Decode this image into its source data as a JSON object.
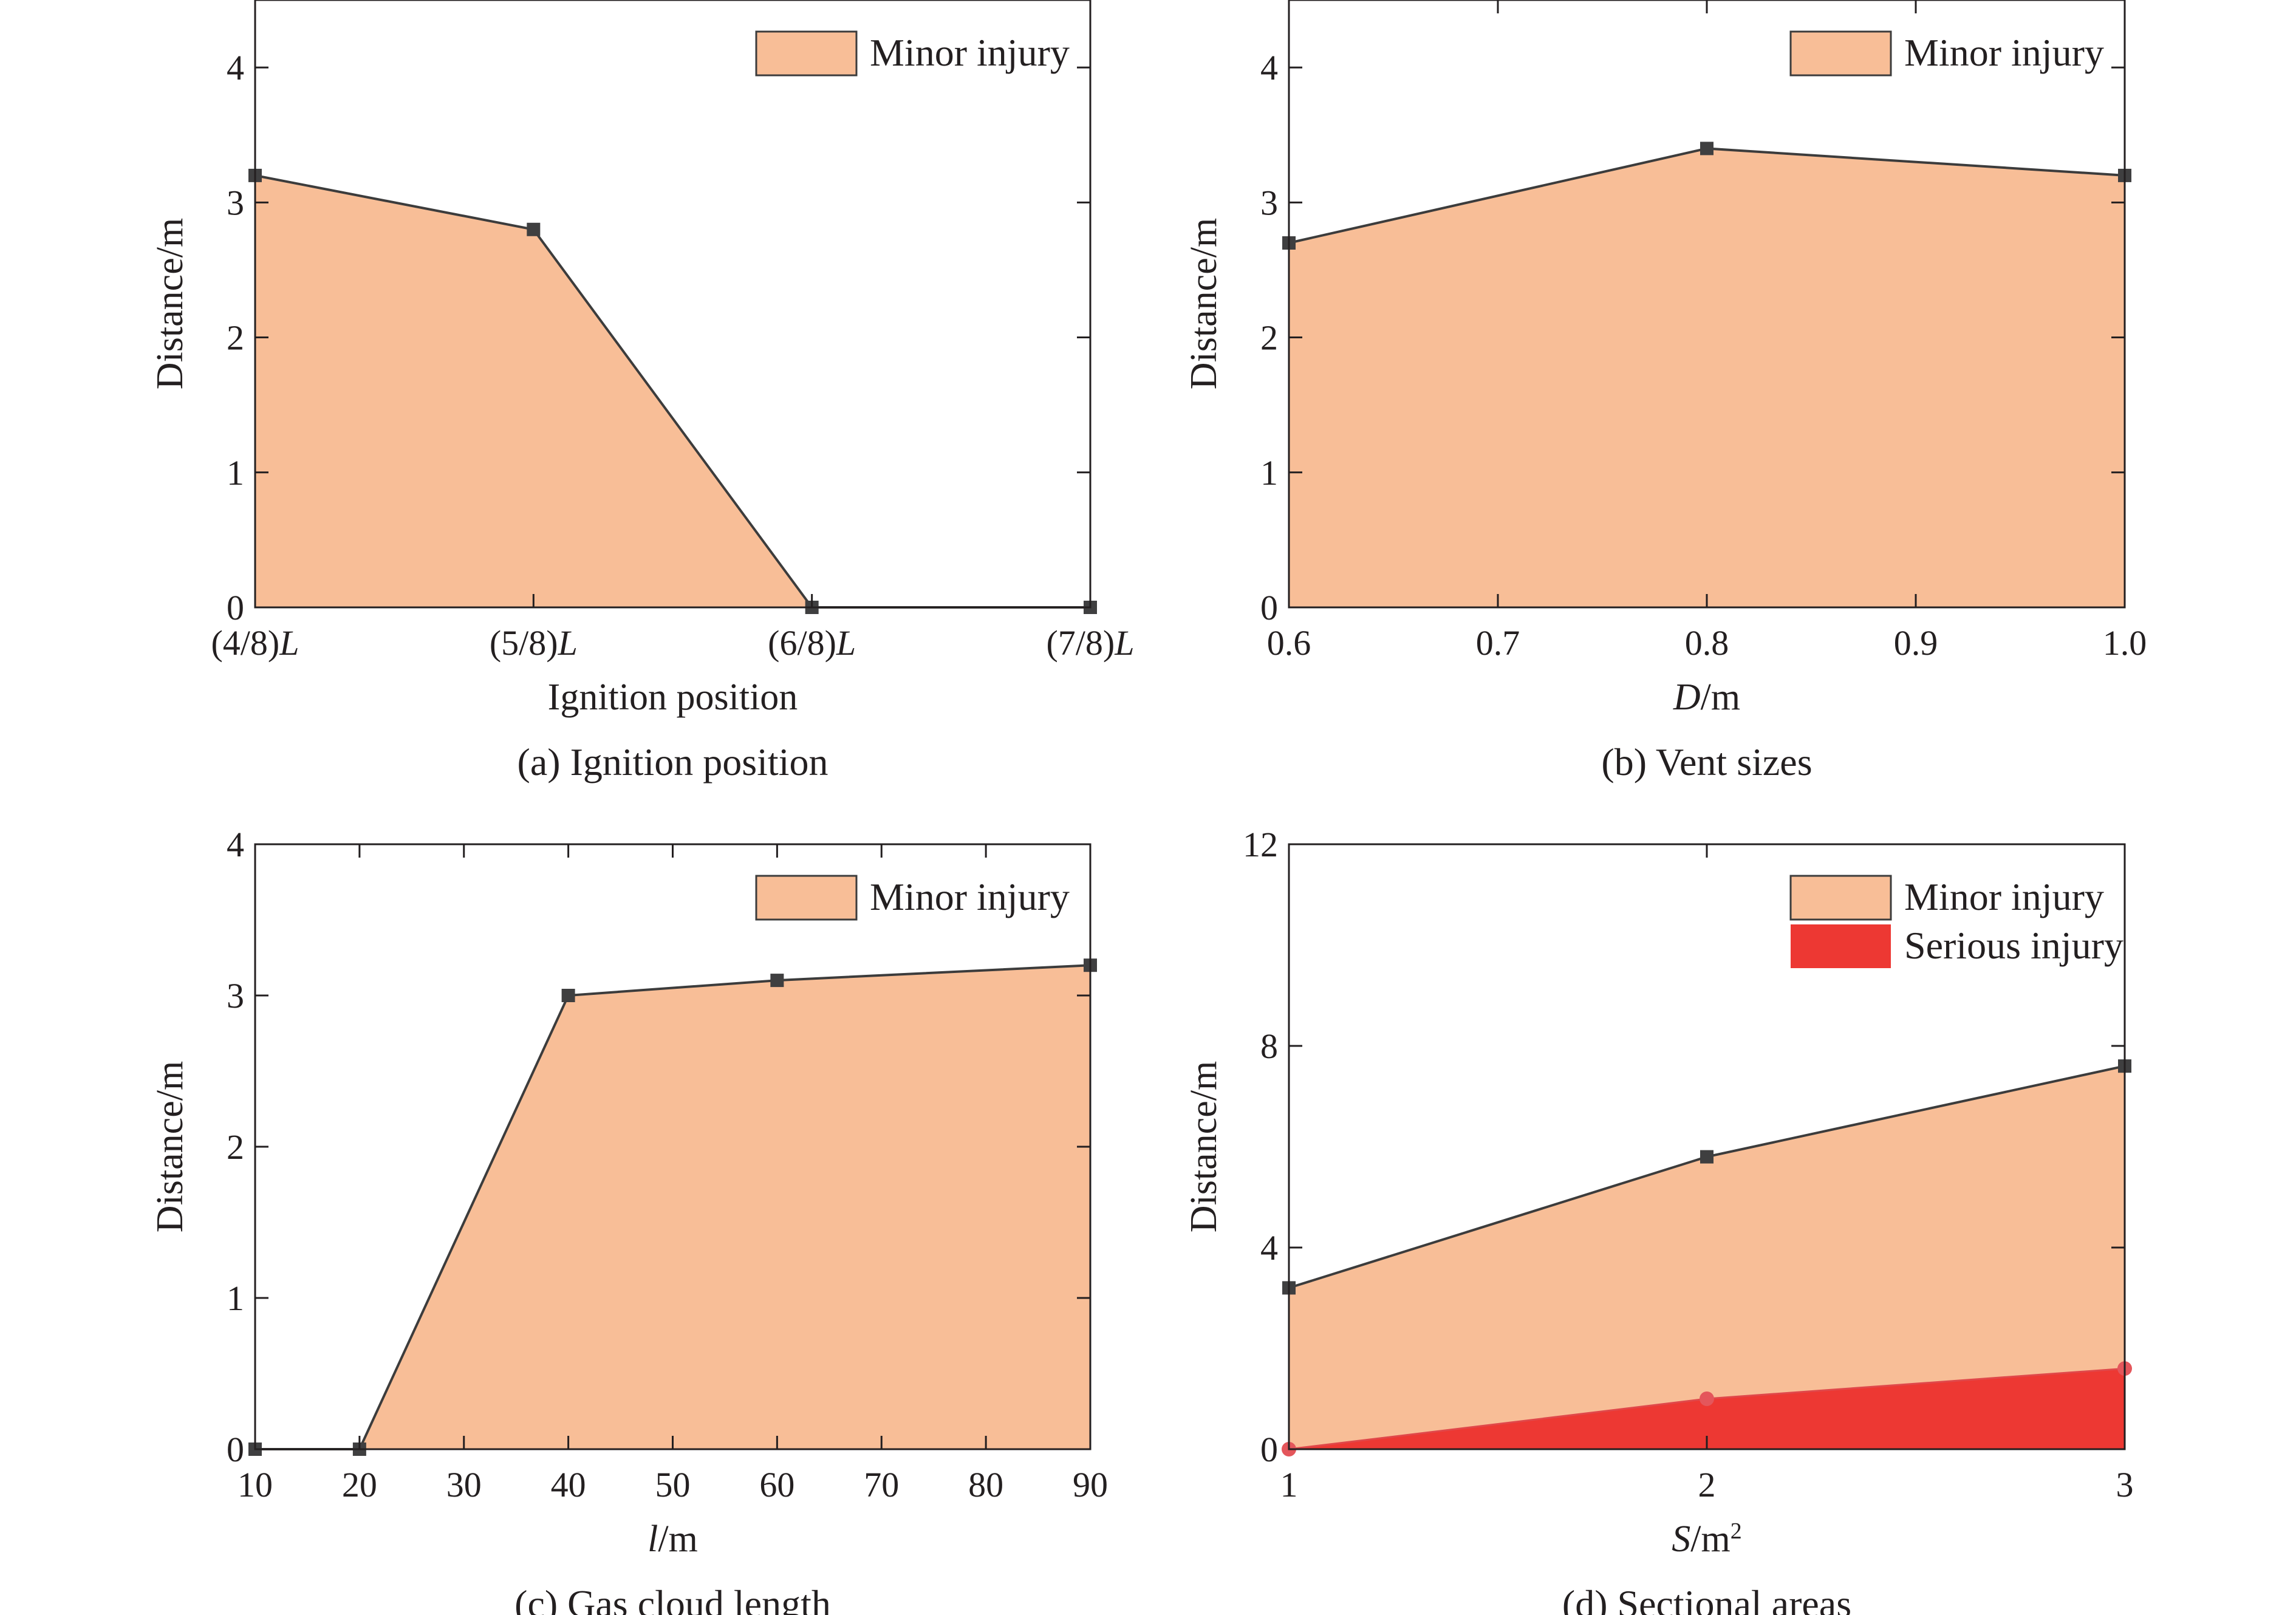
{
  "chart_data": [
    {
      "panel": "a",
      "type": "area",
      "caption": "(a) Ignition position",
      "xlabel": "Ignition position",
      "ylabel": "Distance/m",
      "categories": [
        "(4/8)L",
        "(5/8)L",
        "(6/8)L",
        "(7/8)L"
      ],
      "ylim": [
        0,
        4.5
      ],
      "yticks": [
        0,
        1,
        2,
        3,
        4
      ],
      "legend": "top-right",
      "series": [
        {
          "name": "Minor injury",
          "values": [
            3.2,
            2.8,
            0,
            0
          ],
          "color": "#f8be97"
        }
      ]
    },
    {
      "panel": "b",
      "type": "area",
      "caption": "(b) Vent sizes",
      "xlabel": "D/m",
      "ylabel": "Distance/m",
      "x": [
        0.6,
        0.8,
        1.0
      ],
      "xlim": [
        0.6,
        1.0
      ],
      "xticks": [
        "0.6",
        "0.7",
        "0.8",
        "0.9",
        "1.0"
      ],
      "ylim": [
        0,
        4.5
      ],
      "yticks": [
        0,
        1,
        2,
        3,
        4
      ],
      "legend": "top-right",
      "series": [
        {
          "name": "Minor injury",
          "values": [
            2.7,
            3.4,
            3.2
          ],
          "color": "#f8be97"
        }
      ]
    },
    {
      "panel": "c",
      "type": "area",
      "caption": "(c) Gas cloud length",
      "xlabel": "l/m",
      "ylabel": "Distance/m",
      "x": [
        10,
        20,
        40,
        60,
        90
      ],
      "xlim": [
        10,
        90
      ],
      "xticks": [
        "10",
        "20",
        "30",
        "40",
        "50",
        "60",
        "70",
        "80",
        "90"
      ],
      "ylim": [
        0,
        4
      ],
      "yticks": [
        0,
        1,
        2,
        3,
        4
      ],
      "legend": "top-right",
      "series": [
        {
          "name": "Minor injury",
          "values": [
            0,
            0,
            3.0,
            3.1,
            3.2
          ],
          "color": "#f8be97"
        }
      ]
    },
    {
      "panel": "d",
      "type": "area",
      "caption": "(d) Sectional areas",
      "xlabel": "S/m²",
      "ylabel": "Distance/m",
      "x": [
        1,
        2,
        3
      ],
      "xlim": [
        1,
        3
      ],
      "xticks": [
        "1",
        "2",
        "3"
      ],
      "ylim": [
        0,
        12
      ],
      "yticks": [
        0,
        4,
        8,
        12
      ],
      "legend": "top-right",
      "series": [
        {
          "name": "Minor injury",
          "values": [
            3.2,
            5.8,
            7.6
          ],
          "color": "#f8be97"
        },
        {
          "name": "Serious injury",
          "values": [
            0,
            1.0,
            1.6
          ],
          "color": "#ed3833"
        }
      ]
    }
  ]
}
